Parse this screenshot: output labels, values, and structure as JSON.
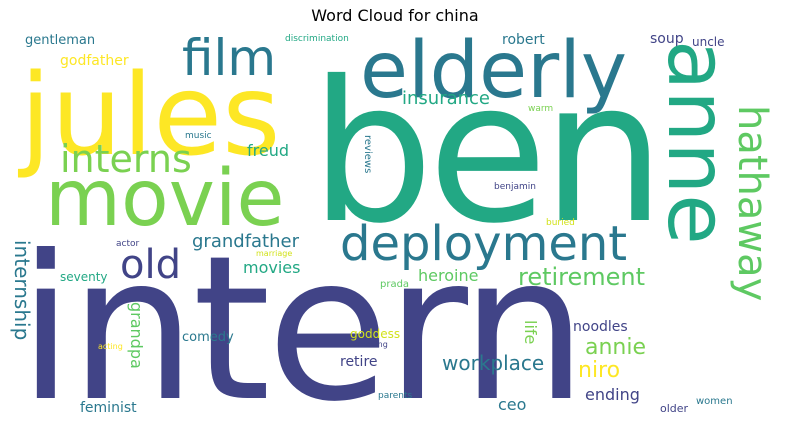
{
  "title": "Word Cloud for china",
  "words": {
    "ben": {
      "text": "ben",
      "color": "#22a884"
    },
    "intern": {
      "text": "intern",
      "color": "#414487"
    },
    "elderly": {
      "text": "elderly",
      "color": "#2a788e"
    },
    "jules": {
      "text": "jules",
      "color": "#fde725"
    },
    "movie": {
      "text": "movie",
      "color": "#7ad151"
    },
    "anne": {
      "text": "anne",
      "color": "#22a884"
    },
    "film": {
      "text": "film",
      "color": "#2a788e"
    },
    "deployment": {
      "text": "deployment",
      "color": "#2a788e"
    },
    "interns": {
      "text": "interns",
      "color": "#7ad151"
    },
    "hathaway": {
      "text": "hathaway",
      "color": "#5ec962"
    },
    "old": {
      "text": "old",
      "color": "#414487"
    },
    "retirement": {
      "text": "retirement",
      "color": "#5ec962"
    },
    "insurance": {
      "text": "insurance",
      "color": "#22a884"
    },
    "grandfather": {
      "text": "grandfather",
      "color": "#2a788e"
    },
    "internship": {
      "text": "internship",
      "color": "#2a788e"
    },
    "workplace": {
      "text": "workplace",
      "color": "#2a788e"
    },
    "annie": {
      "text": "annie",
      "color": "#7ad151"
    },
    "niro": {
      "text": "niro",
      "color": "#fde725"
    },
    "heroine": {
      "text": "heroine",
      "color": "#5ec962"
    },
    "movies": {
      "text": "movies",
      "color": "#22a884"
    },
    "freud": {
      "text": "freud",
      "color": "#22a884"
    },
    "robert": {
      "text": "robert",
      "color": "#2a788e"
    },
    "soup": {
      "text": "soup",
      "color": "#414487"
    },
    "uncle": {
      "text": "uncle",
      "color": "#414487"
    },
    "godfather": {
      "text": "godfather",
      "color": "#fde725"
    },
    "gentleman": {
      "text": "gentleman",
      "color": "#2a788e"
    },
    "discrimination": {
      "text": "discrimination",
      "color": "#22a884"
    },
    "grandpa": {
      "text": "grandpa",
      "color": "#5ec962"
    },
    "life": {
      "text": "life",
      "color": "#7ad151"
    },
    "ceo": {
      "text": "ceo",
      "color": "#2a788e"
    },
    "ending": {
      "text": "ending",
      "color": "#414487"
    },
    "noodles": {
      "text": "noodles",
      "color": "#414487"
    },
    "retire": {
      "text": "retire",
      "color": "#414487"
    },
    "goddess": {
      "text": "goddess",
      "color": "#d2e21b"
    },
    "comedy": {
      "text": "comedy",
      "color": "#2a788e"
    },
    "feminist": {
      "text": "feminist",
      "color": "#2a788e"
    },
    "seventy": {
      "text": "seventy",
      "color": "#22a884"
    },
    "actor": {
      "text": "actor",
      "color": "#414487"
    },
    "marriage": {
      "text": "marriage",
      "color": "#d2e21b"
    },
    "prada": {
      "text": "prada",
      "color": "#5ec962"
    },
    "buried": {
      "text": "buried",
      "color": "#d2e21b"
    },
    "benjamin": {
      "text": "benjamin",
      "color": "#414487"
    },
    "reviews": {
      "text": "reviews",
      "color": "#2a788e"
    },
    "warm": {
      "text": "warm",
      "color": "#7ad151"
    },
    "music": {
      "text": "music",
      "color": "#2a788e"
    },
    "acting": {
      "text": "acting",
      "color": "#fde725"
    },
    "moving": {
      "text": "moving",
      "color": "#414487"
    },
    "parents": {
      "text": "parents",
      "color": "#2a788e"
    },
    "women": {
      "text": "women",
      "color": "#2a788e"
    },
    "older": {
      "text": "older",
      "color": "#414487"
    }
  }
}
